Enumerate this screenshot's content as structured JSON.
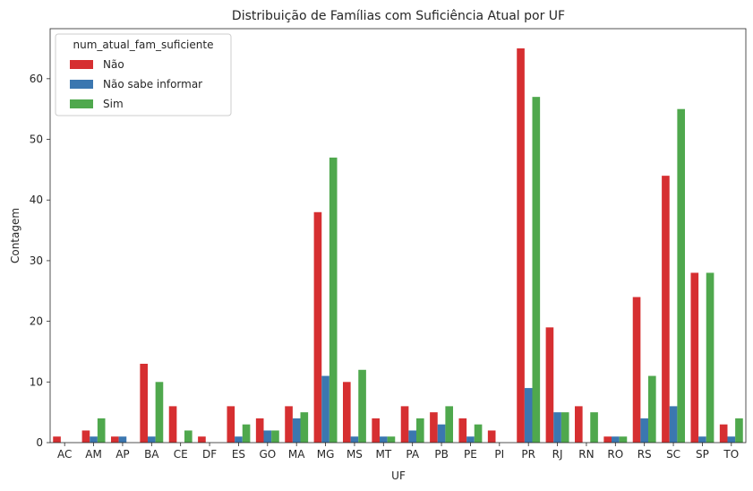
{
  "chart_data": {
    "type": "bar",
    "title": "Distribuição de Famílias com Suficiência Atual por UF",
    "xlabel": "UF",
    "ylabel": "Contagem",
    "ylim": [
      0,
      68.25
    ],
    "yticks": [
      0,
      10,
      20,
      30,
      40,
      50,
      60
    ],
    "legend_title": "num_atual_fam_suficiente",
    "legend_position": "top-left",
    "categories": [
      "AC",
      "AM",
      "AP",
      "BA",
      "CE",
      "DF",
      "ES",
      "GO",
      "MA",
      "MG",
      "MS",
      "MT",
      "PA",
      "PB",
      "PE",
      "PI",
      "PR",
      "RJ",
      "RN",
      "RO",
      "RS",
      "SC",
      "SP",
      "TO"
    ],
    "series": [
      {
        "name": "Não",
        "color": "#d62f31",
        "values": [
          1,
          2,
          1,
          13,
          6,
          1,
          6,
          4,
          6,
          38,
          10,
          4,
          6,
          5,
          4,
          2,
          65,
          19,
          6,
          1,
          24,
          44,
          28,
          3
        ]
      },
      {
        "name": "Não sabe informar",
        "color": "#3b77b0",
        "values": [
          0,
          1,
          1,
          1,
          0,
          0,
          1,
          2,
          4,
          11,
          1,
          1,
          2,
          3,
          1,
          0,
          9,
          5,
          0,
          1,
          4,
          6,
          1,
          1
        ]
      },
      {
        "name": "Sim",
        "color": "#4fa84d",
        "values": [
          0,
          4,
          0,
          10,
          2,
          0,
          3,
          2,
          5,
          47,
          12,
          1,
          4,
          6,
          3,
          0,
          57,
          5,
          5,
          1,
          11,
          55,
          28,
          4
        ]
      }
    ]
  }
}
